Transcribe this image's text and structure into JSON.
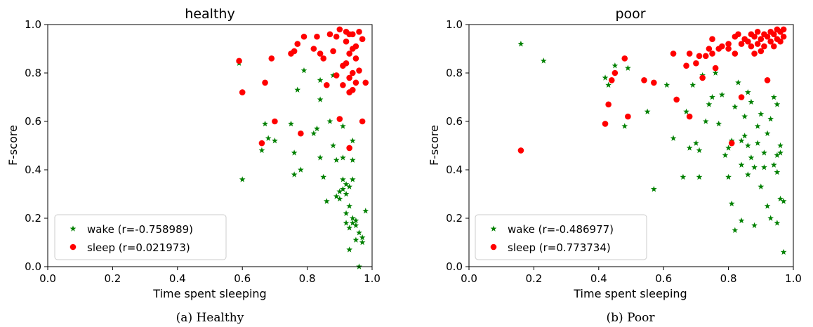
{
  "chart_data": [
    {
      "type": "scatter",
      "title": "healthy",
      "caption": "(a)  Healthy",
      "xlabel": "Time spent sleeping",
      "ylabel": "F-score",
      "xlim": [
        0.0,
        1.0
      ],
      "ylim": [
        0.0,
        1.0
      ],
      "x_ticks": [
        "0.0",
        "0.2",
        "0.4",
        "0.6",
        "0.8",
        "1.0"
      ],
      "y_ticks": [
        "0.0",
        "0.2",
        "0.4",
        "0.6",
        "0.8",
        "1.0"
      ],
      "grid": false,
      "legend_position": "lower-left",
      "series": [
        {
          "name": "wake (r=-0.758989)",
          "marker": "star",
          "color": "#008000",
          "points": [
            [
              0.59,
              0.84
            ],
            [
              0.6,
              0.36
            ],
            [
              0.66,
              0.48
            ],
            [
              0.67,
              0.59
            ],
            [
              0.68,
              0.53
            ],
            [
              0.7,
              0.52
            ],
            [
              0.75,
              0.59
            ],
            [
              0.76,
              0.47
            ],
            [
              0.76,
              0.38
            ],
            [
              0.77,
              0.73
            ],
            [
              0.78,
              0.4
            ],
            [
              0.79,
              0.81
            ],
            [
              0.82,
              0.55
            ],
            [
              0.83,
              0.57
            ],
            [
              0.84,
              0.69
            ],
            [
              0.84,
              0.45
            ],
            [
              0.84,
              0.77
            ],
            [
              0.85,
              0.37
            ],
            [
              0.86,
              0.27
            ],
            [
              0.87,
              0.6
            ],
            [
              0.88,
              0.5
            ],
            [
              0.88,
              0.79
            ],
            [
              0.89,
              0.44
            ],
            [
              0.89,
              0.29
            ],
            [
              0.9,
              0.31
            ],
            [
              0.9,
              0.28
            ],
            [
              0.91,
              0.58
            ],
            [
              0.91,
              0.32
            ],
            [
              0.91,
              0.45
            ],
            [
              0.92,
              0.34
            ],
            [
              0.92,
              0.22
            ],
            [
              0.92,
              0.18
            ],
            [
              0.93,
              0.25
            ],
            [
              0.93,
              0.33
            ],
            [
              0.93,
              0.16
            ],
            [
              0.93,
              0.07
            ],
            [
              0.94,
              0.2
            ],
            [
              0.94,
              0.52
            ],
            [
              0.94,
              0.44
            ],
            [
              0.94,
              0.36
            ],
            [
              0.95,
              0.17
            ],
            [
              0.95,
              0.11
            ],
            [
              0.95,
              0.19
            ],
            [
              0.96,
              0.14
            ],
            [
              0.96,
              0.0
            ],
            [
              0.97,
              0.12
            ],
            [
              0.97,
              0.1
            ],
            [
              0.98,
              0.23
            ],
            [
              0.93,
              0.49
            ],
            [
              0.91,
              0.36
            ],
            [
              0.92,
              0.3
            ],
            [
              0.94,
              0.18
            ]
          ]
        },
        {
          "name": "sleep (r=0.021973)",
          "marker": "circle",
          "color": "#ff0000",
          "points": [
            [
              0.59,
              0.85
            ],
            [
              0.6,
              0.72
            ],
            [
              0.66,
              0.51
            ],
            [
              0.67,
              0.76
            ],
            [
              0.69,
              0.86
            ],
            [
              0.7,
              0.6
            ],
            [
              0.75,
              0.88
            ],
            [
              0.76,
              0.89
            ],
            [
              0.77,
              0.92
            ],
            [
              0.78,
              0.55
            ],
            [
              0.79,
              0.95
            ],
            [
              0.82,
              0.9
            ],
            [
              0.83,
              0.95
            ],
            [
              0.84,
              0.88
            ],
            [
              0.85,
              0.86
            ],
            [
              0.86,
              0.75
            ],
            [
              0.87,
              0.96
            ],
            [
              0.88,
              0.89
            ],
            [
              0.89,
              0.95
            ],
            [
              0.89,
              0.79
            ],
            [
              0.9,
              0.98
            ],
            [
              0.9,
              0.61
            ],
            [
              0.91,
              0.83
            ],
            [
              0.91,
              0.75
            ],
            [
              0.92,
              0.97
            ],
            [
              0.92,
              0.93
            ],
            [
              0.92,
              0.84
            ],
            [
              0.93,
              0.96
            ],
            [
              0.93,
              0.88
            ],
            [
              0.93,
              0.78
            ],
            [
              0.93,
              0.49
            ],
            [
              0.94,
              0.96
            ],
            [
              0.94,
              0.9
            ],
            [
              0.94,
              0.8
            ],
            [
              0.94,
              0.73
            ],
            [
              0.95,
              0.91
            ],
            [
              0.95,
              0.86
            ],
            [
              0.95,
              0.76
            ],
            [
              0.96,
              0.97
            ],
            [
              0.96,
              0.81
            ],
            [
              0.97,
              0.94
            ],
            [
              0.97,
              0.6
            ],
            [
              0.98,
              0.76
            ],
            [
              0.93,
              0.72
            ]
          ]
        }
      ]
    },
    {
      "type": "scatter",
      "title": "poor",
      "caption": "(b)  Poor",
      "xlabel": "Time spent sleeping",
      "ylabel": "F-score",
      "xlim": [
        0.0,
        1.0
      ],
      "ylim": [
        0.0,
        1.0
      ],
      "x_ticks": [
        "0.0",
        "0.2",
        "0.4",
        "0.6",
        "0.8",
        "1.0"
      ],
      "y_ticks": [
        "0.0",
        "0.2",
        "0.4",
        "0.6",
        "0.8",
        "1.0"
      ],
      "grid": false,
      "legend_position": "lower-left",
      "series": [
        {
          "name": "wake (r=-0.486977)",
          "marker": "star",
          "color": "#008000",
          "points": [
            [
              0.16,
              0.92
            ],
            [
              0.23,
              0.85
            ],
            [
              0.42,
              0.78
            ],
            [
              0.43,
              0.75
            ],
            [
              0.45,
              0.83
            ],
            [
              0.48,
              0.58
            ],
            [
              0.49,
              0.82
            ],
            [
              0.55,
              0.64
            ],
            [
              0.57,
              0.32
            ],
            [
              0.61,
              0.75
            ],
            [
              0.63,
              0.53
            ],
            [
              0.66,
              0.37
            ],
            [
              0.67,
              0.64
            ],
            [
              0.68,
              0.49
            ],
            [
              0.69,
              0.75
            ],
            [
              0.7,
              0.51
            ],
            [
              0.71,
              0.48
            ],
            [
              0.71,
              0.37
            ],
            [
              0.72,
              0.79
            ],
            [
              0.73,
              0.6
            ],
            [
              0.74,
              0.67
            ],
            [
              0.75,
              0.7
            ],
            [
              0.76,
              0.8
            ],
            [
              0.77,
              0.59
            ],
            [
              0.78,
              0.71
            ],
            [
              0.79,
              0.46
            ],
            [
              0.8,
              0.37
            ],
            [
              0.8,
              0.49
            ],
            [
              0.81,
              0.52
            ],
            [
              0.81,
              0.26
            ],
            [
              0.82,
              0.15
            ],
            [
              0.82,
              0.66
            ],
            [
              0.83,
              0.76
            ],
            [
              0.84,
              0.52
            ],
            [
              0.84,
              0.19
            ],
            [
              0.84,
              0.42
            ],
            [
              0.85,
              0.54
            ],
            [
              0.85,
              0.62
            ],
            [
              0.86,
              0.5
            ],
            [
              0.86,
              0.38
            ],
            [
              0.86,
              0.72
            ],
            [
              0.87,
              0.68
            ],
            [
              0.87,
              0.45
            ],
            [
              0.88,
              0.17
            ],
            [
              0.88,
              0.41
            ],
            [
              0.89,
              0.58
            ],
            [
              0.89,
              0.51
            ],
            [
              0.9,
              0.33
            ],
            [
              0.9,
              0.63
            ],
            [
              0.91,
              0.47
            ],
            [
              0.91,
              0.41
            ],
            [
              0.92,
              0.55
            ],
            [
              0.92,
              0.25
            ],
            [
              0.93,
              0.2
            ],
            [
              0.93,
              0.61
            ],
            [
              0.94,
              0.42
            ],
            [
              0.94,
              0.7
            ],
            [
              0.95,
              0.46
            ],
            [
              0.95,
              0.18
            ],
            [
              0.95,
              0.39
            ],
            [
              0.96,
              0.47
            ],
            [
              0.96,
              0.28
            ],
            [
              0.96,
              0.5
            ],
            [
              0.97,
              0.27
            ],
            [
              0.97,
              0.06
            ],
            [
              0.95,
              0.67
            ]
          ]
        },
        {
          "name": "sleep (r=0.773734)",
          "marker": "circle",
          "color": "#ff0000",
          "points": [
            [
              0.16,
              0.48
            ],
            [
              0.42,
              0.59
            ],
            [
              0.43,
              0.67
            ],
            [
              0.44,
              0.77
            ],
            [
              0.45,
              0.8
            ],
            [
              0.48,
              0.86
            ],
            [
              0.49,
              0.62
            ],
            [
              0.54,
              0.77
            ],
            [
              0.57,
              0.76
            ],
            [
              0.63,
              0.88
            ],
            [
              0.64,
              0.69
            ],
            [
              0.67,
              0.83
            ],
            [
              0.68,
              0.62
            ],
            [
              0.68,
              0.88
            ],
            [
              0.7,
              0.84
            ],
            [
              0.71,
              0.87
            ],
            [
              0.72,
              0.78
            ],
            [
              0.73,
              0.87
            ],
            [
              0.74,
              0.9
            ],
            [
              0.75,
              0.88
            ],
            [
              0.75,
              0.94
            ],
            [
              0.76,
              0.82
            ],
            [
              0.77,
              0.9
            ],
            [
              0.78,
              0.91
            ],
            [
              0.8,
              0.9
            ],
            [
              0.8,
              0.92
            ],
            [
              0.81,
              0.51
            ],
            [
              0.82,
              0.95
            ],
            [
              0.82,
              0.88
            ],
            [
              0.83,
              0.96
            ],
            [
              0.84,
              0.7
            ],
            [
              0.84,
              0.92
            ],
            [
              0.85,
              0.94
            ],
            [
              0.86,
              0.93
            ],
            [
              0.87,
              0.96
            ],
            [
              0.87,
              0.91
            ],
            [
              0.88,
              0.95
            ],
            [
              0.88,
              0.88
            ],
            [
              0.89,
              0.97
            ],
            [
              0.89,
              0.92
            ],
            [
              0.9,
              0.94
            ],
            [
              0.9,
              0.89
            ],
            [
              0.91,
              0.96
            ],
            [
              0.91,
              0.91
            ],
            [
              0.92,
              0.77
            ],
            [
              0.92,
              0.95
            ],
            [
              0.93,
              0.93
            ],
            [
              0.93,
              0.97
            ],
            [
              0.94,
              0.96
            ],
            [
              0.94,
              0.91
            ],
            [
              0.95,
              0.98
            ],
            [
              0.95,
              0.94
            ],
            [
              0.96,
              0.97
            ],
            [
              0.96,
              0.93
            ],
            [
              0.97,
              0.98
            ],
            [
              0.97,
              0.95
            ]
          ]
        }
      ]
    }
  ]
}
